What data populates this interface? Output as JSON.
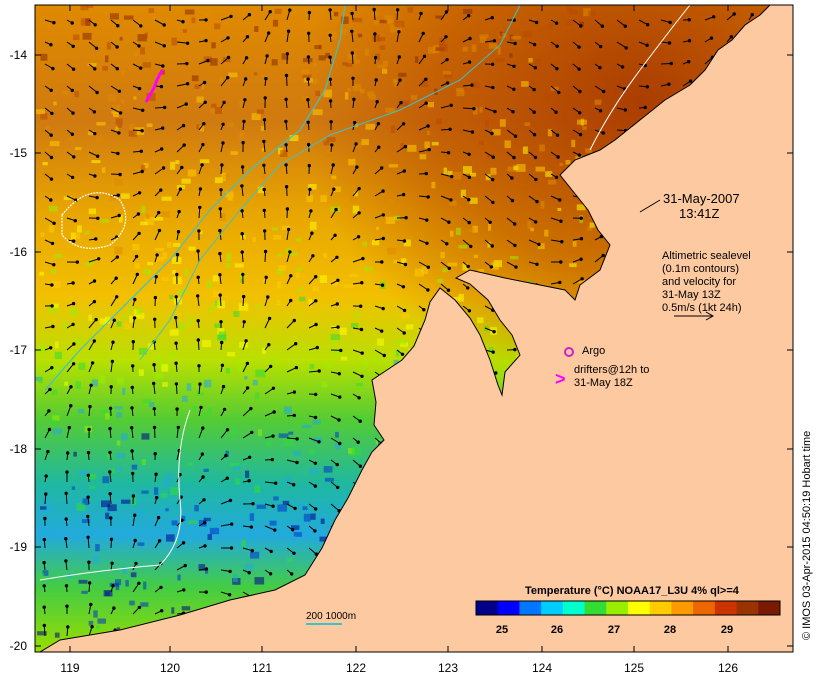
{
  "map": {
    "lat_labels": [
      "-14",
      "-15",
      "-16",
      "-17",
      "-18",
      "-19",
      "-20"
    ],
    "lon_labels": [
      "119",
      "120",
      "121",
      "122",
      "123",
      "124",
      "125",
      "126"
    ],
    "colors": {
      "land": "#fdc9a0",
      "coastline": "#000000",
      "contour": "#ffffff",
      "shelf_contour": "#3fc1c9",
      "drifter": "#ff00ff",
      "argo": "#cc22cc"
    }
  },
  "annotations": {
    "timestamp_line1": "31-May-2007",
    "timestamp_line2": "13:41Z",
    "legend_alt_lines": [
      "Altimetric sealevel",
      "(0.1m contours)",
      "and velocity for",
      "31-May 13Z",
      "0.5m/s (1kt 24h)"
    ],
    "argo_label": "Argo",
    "drifter_lines": [
      "drifters@12h to",
      "31-May 18Z"
    ],
    "drifter_symbol": ">",
    "depth_label": "200  1000m"
  },
  "colorbar": {
    "title": "Temperature (°C) NOAA17_L3U 4% ql>=4",
    "ticks": [
      "25",
      "26",
      "27",
      "28",
      "29"
    ],
    "colors": [
      "#00008b",
      "#0000ff",
      "#0077ff",
      "#00ccff",
      "#00ffcc",
      "#33dd33",
      "#99ee00",
      "#ffff00",
      "#ffcc00",
      "#ff9900",
      "#ee6600",
      "#cc3300",
      "#993300",
      "#7a1a00"
    ]
  },
  "credit": "© IMOS 03-Apr-2015 04:50:19 Hobart time"
}
